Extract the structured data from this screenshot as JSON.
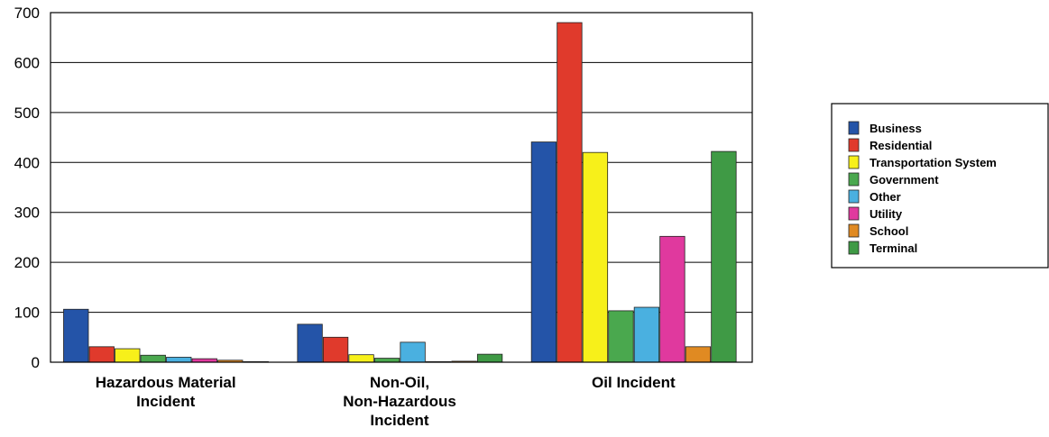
{
  "chart_data": {
    "type": "bar",
    "title": "",
    "xlabel": "",
    "ylabel": "",
    "ylim": [
      0,
      700
    ],
    "yticks": [
      0,
      100,
      200,
      300,
      400,
      500,
      600,
      700
    ],
    "grid": true,
    "legend_position": "right",
    "categories": [
      [
        "Hazardous Material",
        "Incident"
      ],
      [
        "Non-Oil,",
        "Non-Hazardous",
        "Incident"
      ],
      [
        "Oil Incident"
      ]
    ],
    "series": [
      {
        "name": "Business",
        "color": "#2454a8",
        "values": [
          106,
          76,
          441
        ]
      },
      {
        "name": "Residential",
        "color": "#e03a2c",
        "values": [
          31,
          50,
          680
        ]
      },
      {
        "name": "Transportation System",
        "color": "#f7f01a",
        "values": [
          27,
          15,
          420
        ]
      },
      {
        "name": "Government",
        "color": "#4aa84e",
        "values": [
          14,
          8,
          103
        ]
      },
      {
        "name": "Other",
        "color": "#4ab0e0",
        "values": [
          10,
          40,
          110
        ]
      },
      {
        "name": "Utility",
        "color": "#e0399e",
        "values": [
          7,
          0,
          252
        ]
      },
      {
        "name": "School",
        "color": "#e08a22",
        "values": [
          4,
          2,
          31
        ]
      },
      {
        "name": "Terminal",
        "color": "#3f9a45",
        "values": [
          1,
          16,
          422
        ]
      }
    ]
  }
}
